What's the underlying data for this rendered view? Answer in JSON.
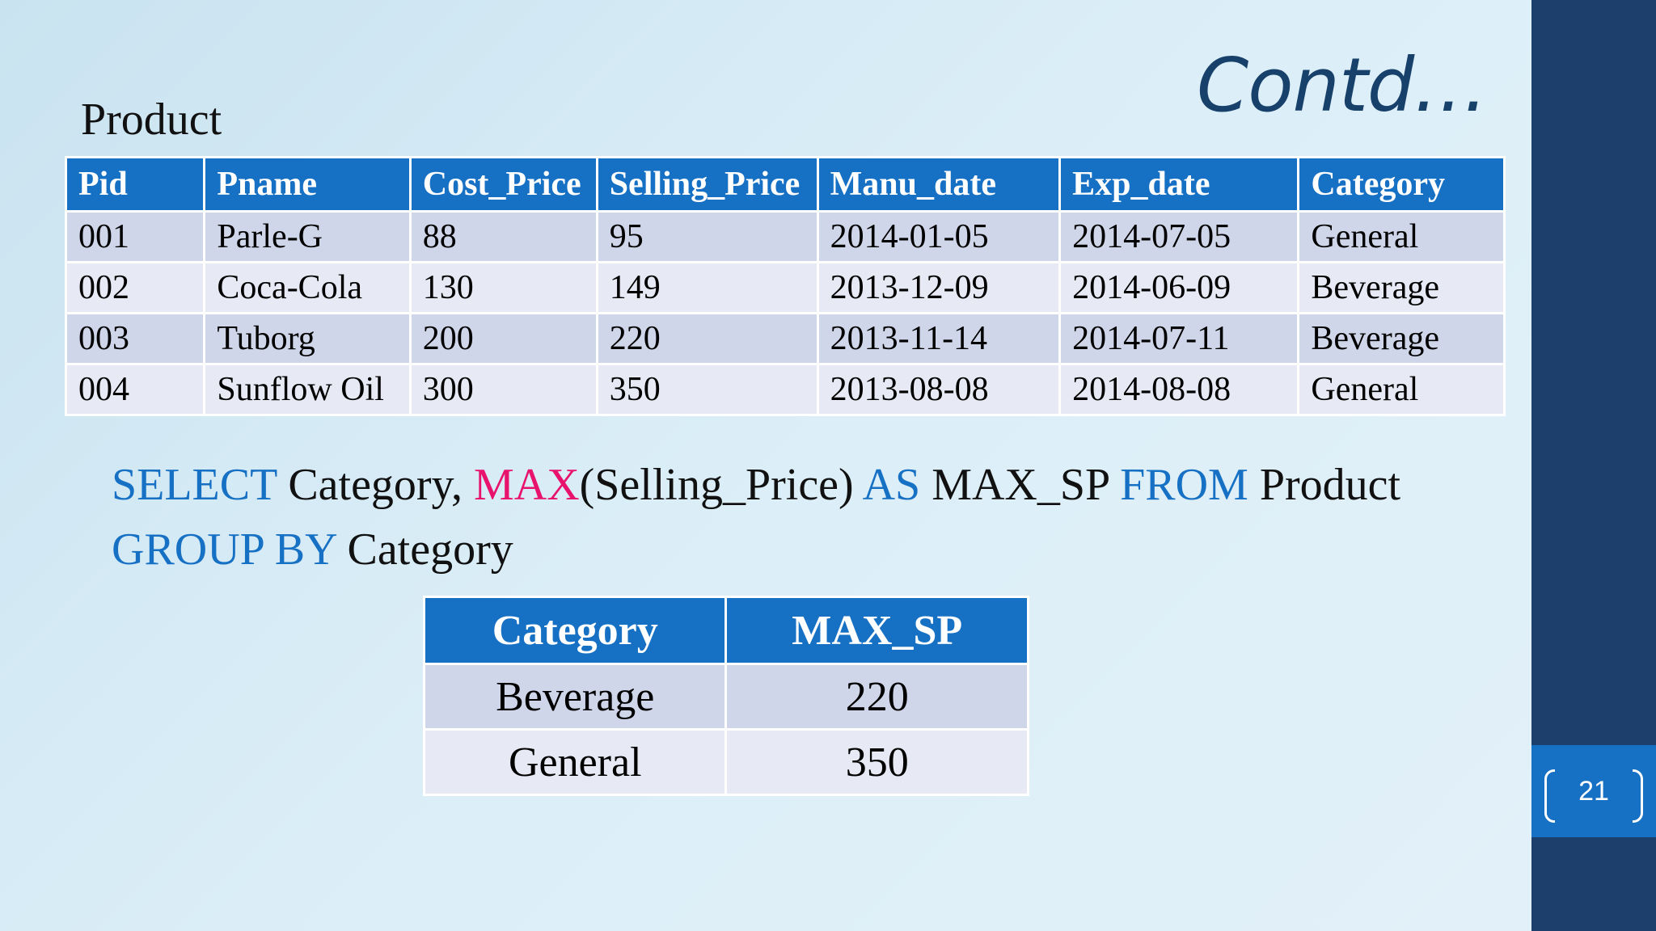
{
  "title": "Contd…",
  "table_caption": "Product",
  "product_table": {
    "headers": [
      "Pid",
      "Pname",
      "Cost_Price",
      "Selling_Price",
      "Manu_date",
      "Exp_date",
      "Category"
    ],
    "rows": [
      [
        "001",
        "Parle-G",
        "88",
        "95",
        "2014-01-05",
        "2014-07-05",
        "General"
      ],
      [
        "002",
        "Coca-Cola",
        "130",
        "149",
        "2013-12-09",
        "2014-06-09",
        "Beverage"
      ],
      [
        "003",
        "Tuborg",
        "200",
        "220",
        "2013-11-14",
        "2014-07-11",
        "Beverage"
      ],
      [
        "004",
        "Sunflow Oil",
        "300",
        "350",
        "2013-08-08",
        "2014-08-08",
        "General"
      ]
    ]
  },
  "sql": {
    "kw_select": "SELECT",
    "t_category": " Category, ",
    "fn_max": "MAX",
    "t_selling": "(Selling_Price) ",
    "kw_as": "AS",
    "t_alias": " MAX_SP ",
    "kw_from": "FROM",
    "t_product": " Product",
    "kw_group_by": "GROUP BY",
    "t_group_col": " Category"
  },
  "result_table": {
    "headers": [
      "Category",
      "MAX_SP"
    ],
    "rows": [
      [
        "Beverage",
        "220"
      ],
      [
        "General",
        "350"
      ]
    ]
  },
  "page_number": "21",
  "colors": {
    "header_blue": "#1670c4",
    "sidebar_navy": "#1d3f6b",
    "title_navy": "#17406b",
    "keyword_blue": "#1670c4",
    "function_pink": "#e8136d",
    "row_odd": "#cfd6e9",
    "row_even": "#e7eaf4"
  }
}
